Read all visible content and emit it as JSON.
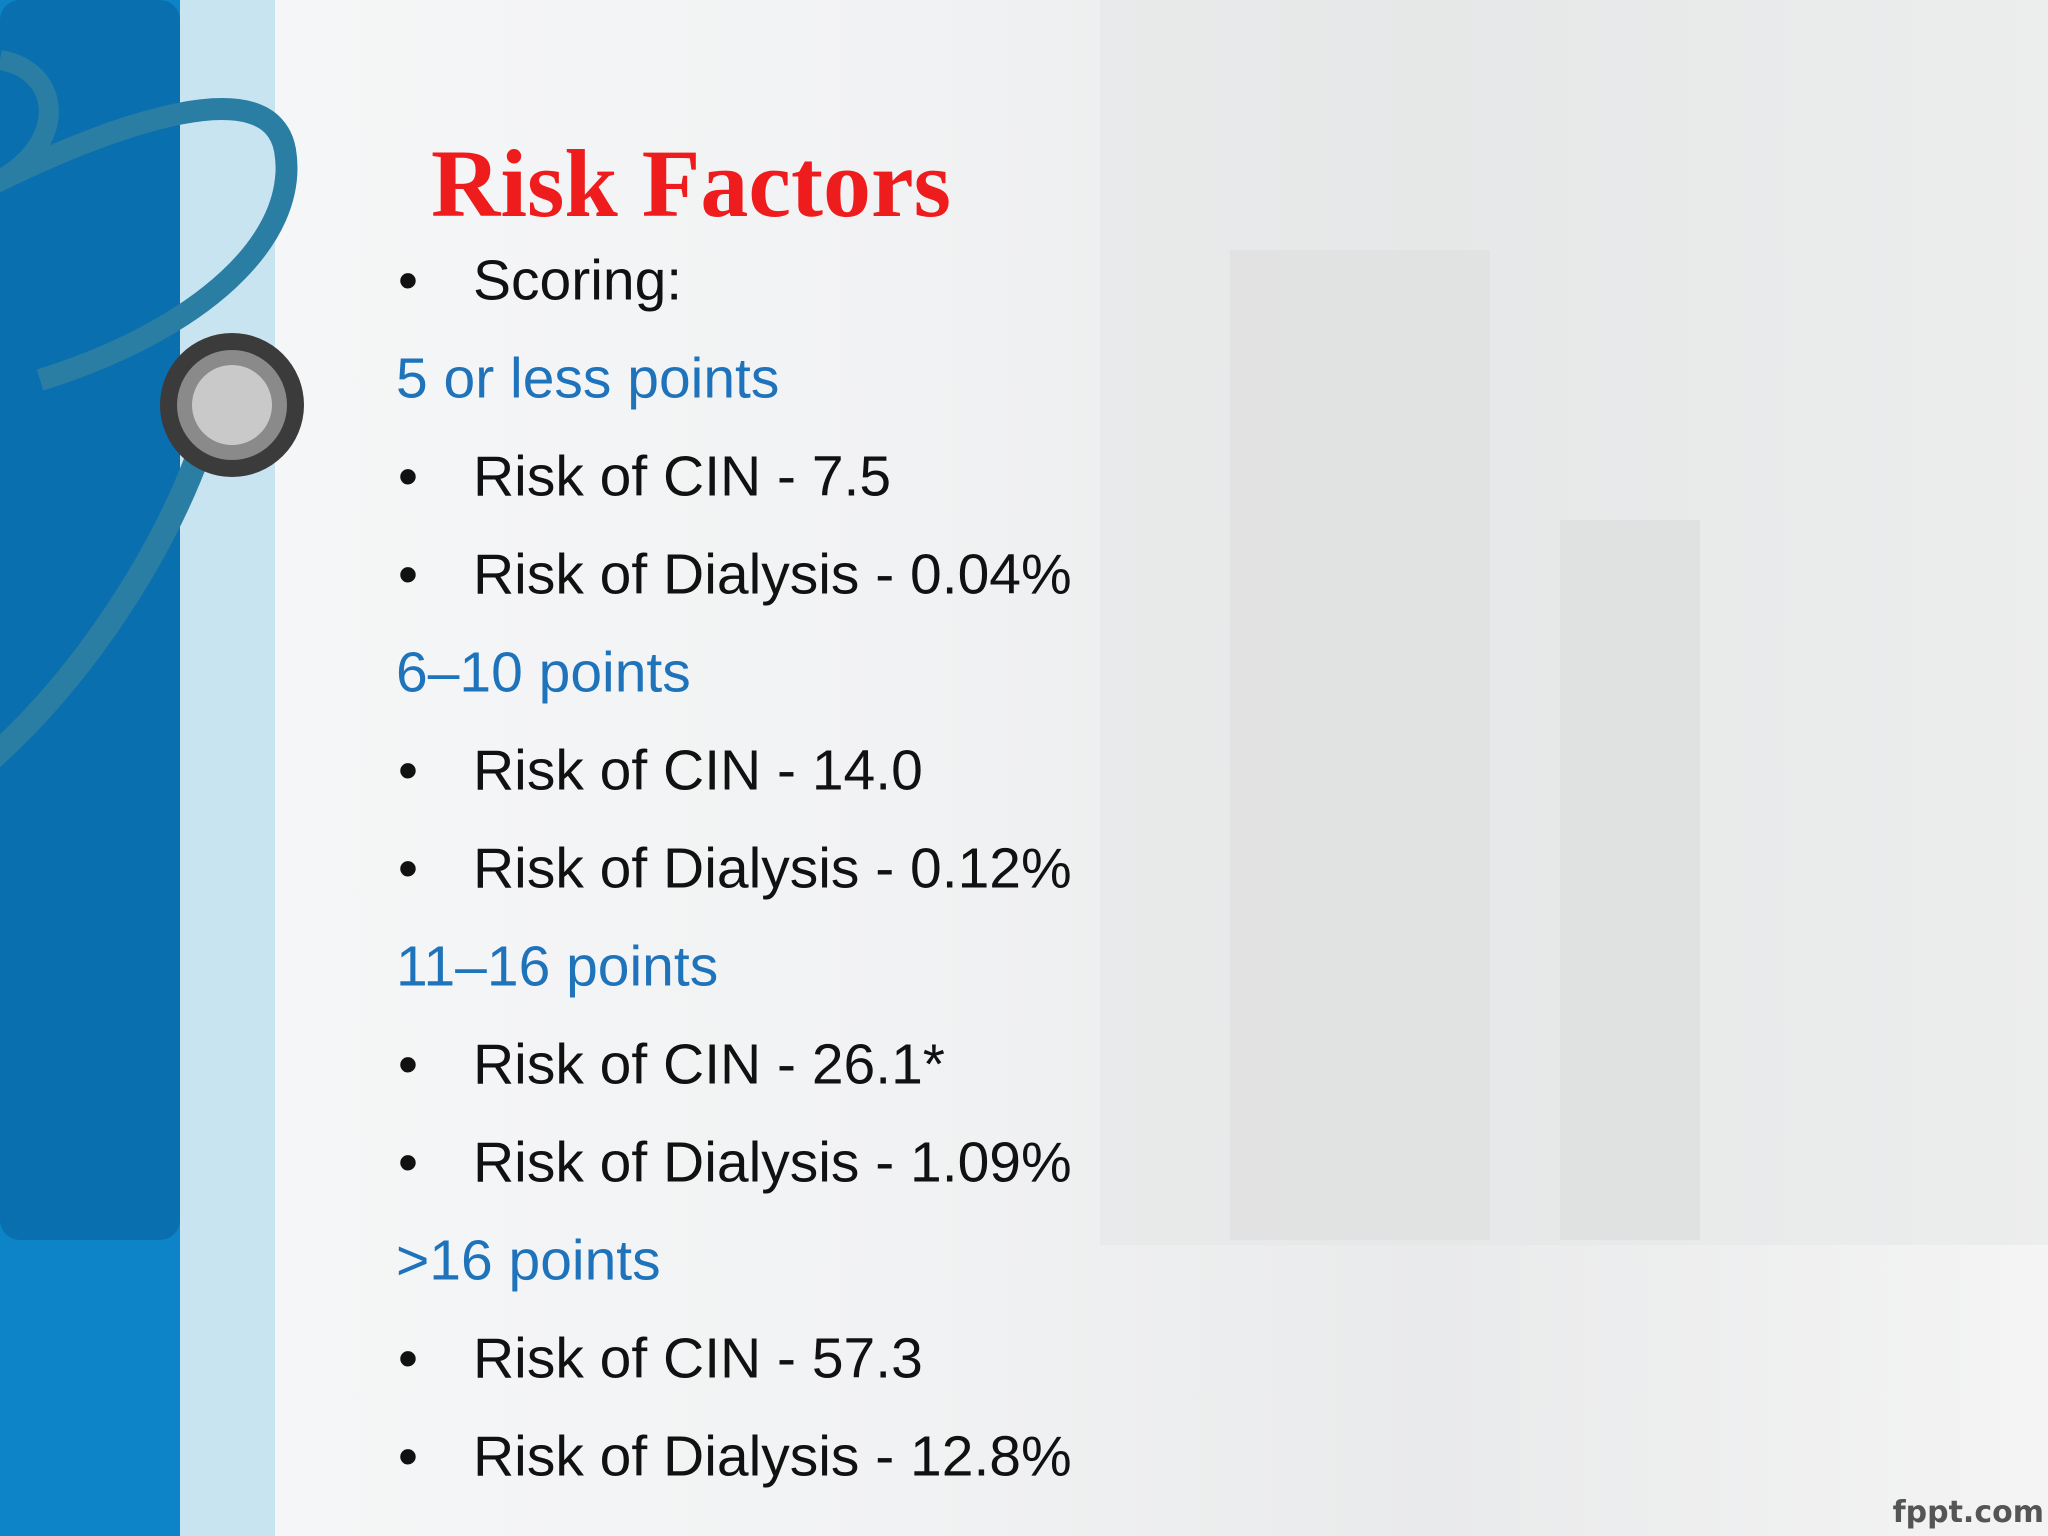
{
  "title": "Risk Factors",
  "intro": "Scoring:",
  "groups": [
    {
      "heading": "5 or less points",
      "bullets": [
        "Risk of CIN - 7.5",
        "Risk of Dialysis - 0.04%"
      ]
    },
    {
      "heading": "6–10 points",
      "bullets": [
        "Risk of CIN - 14.0",
        "Risk of Dialysis - 0.12%"
      ]
    },
    {
      "heading": "11–16 points",
      "bullets": [
        "Risk of CIN - 26.1*",
        "Risk of Dialysis - 1.09%"
      ]
    },
    {
      "heading": ">16 points",
      "bullets": [
        "Risk of CIN - 57.3",
        "Risk of Dialysis - 12.8%"
      ]
    }
  ],
  "footer": "fppt.com"
}
